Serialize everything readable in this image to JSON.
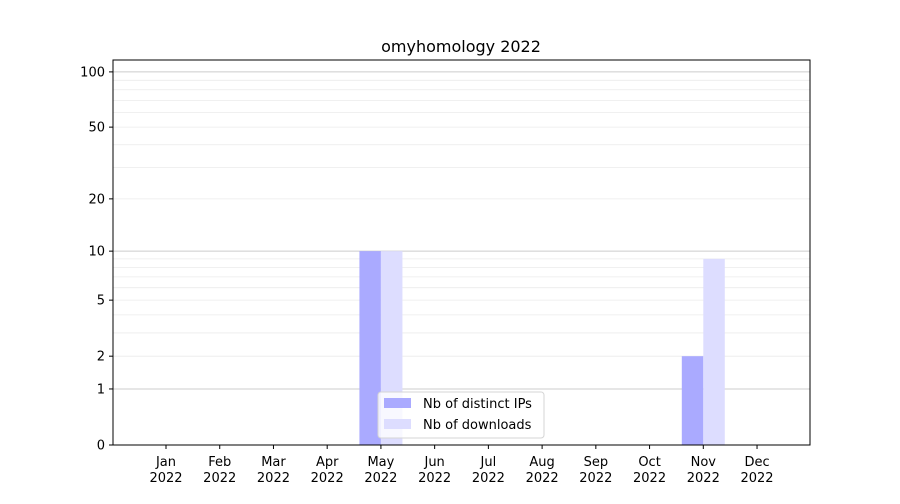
{
  "chart_data": {
    "type": "bar",
    "title": "omyhomology 2022",
    "xlabel": "",
    "ylabel": "",
    "yscale": "log(1+y)",
    "ylim": [
      0,
      116
    ],
    "yticks": [
      0,
      1,
      2,
      5,
      10,
      20,
      50,
      100
    ],
    "grid": true,
    "legend_position": "bottom-center",
    "categories": [
      "Jan\n2022",
      "Feb\n2022",
      "Mar\n2022",
      "Apr\n2022",
      "May\n2022",
      "Jun\n2022",
      "Jul\n2022",
      "Aug\n2022",
      "Sep\n2022",
      "Oct\n2022",
      "Nov\n2022",
      "Dec\n2022"
    ],
    "series": [
      {
        "name": "Nb of distinct IPs",
        "color": "#aaaaff",
        "values": [
          0,
          0,
          0,
          0,
          10,
          0,
          0,
          0,
          0,
          0,
          2,
          0
        ]
      },
      {
        "name": "Nb of downloads",
        "color": "#ddddff",
        "values": [
          0,
          0,
          0,
          0,
          10,
          0,
          0,
          0,
          0,
          0,
          9,
          0
        ]
      }
    ]
  }
}
